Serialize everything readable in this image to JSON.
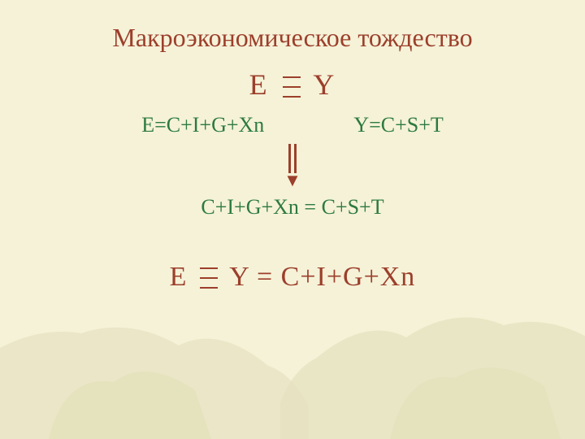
{
  "colors": {
    "background": "#f5f2d8",
    "title": "#9c3f2b",
    "identity": "#9c3f2b",
    "equations": "#2d7a3f",
    "arrow": "#9c3f2b",
    "combined": "#2d7a3f",
    "final": "#9c3f2b",
    "hand_shadow": "#e8e4c4"
  },
  "text": {
    "title": "Макроэкономическое тождество",
    "identity_left": "E",
    "identity_right": "Y",
    "eq_left": "E=C+I+G+Xn",
    "eq_right": "Y=C+S+T",
    "arrow_head": "▼",
    "combined": "C+I+G+Xn = C+S+T",
    "final_left": "E",
    "final_right": "Y = C+I+G+Xn"
  },
  "fonts": {
    "title_size": 32,
    "identity_size": 36,
    "eq_size": 26,
    "combined_size": 26,
    "final_size": 34
  }
}
